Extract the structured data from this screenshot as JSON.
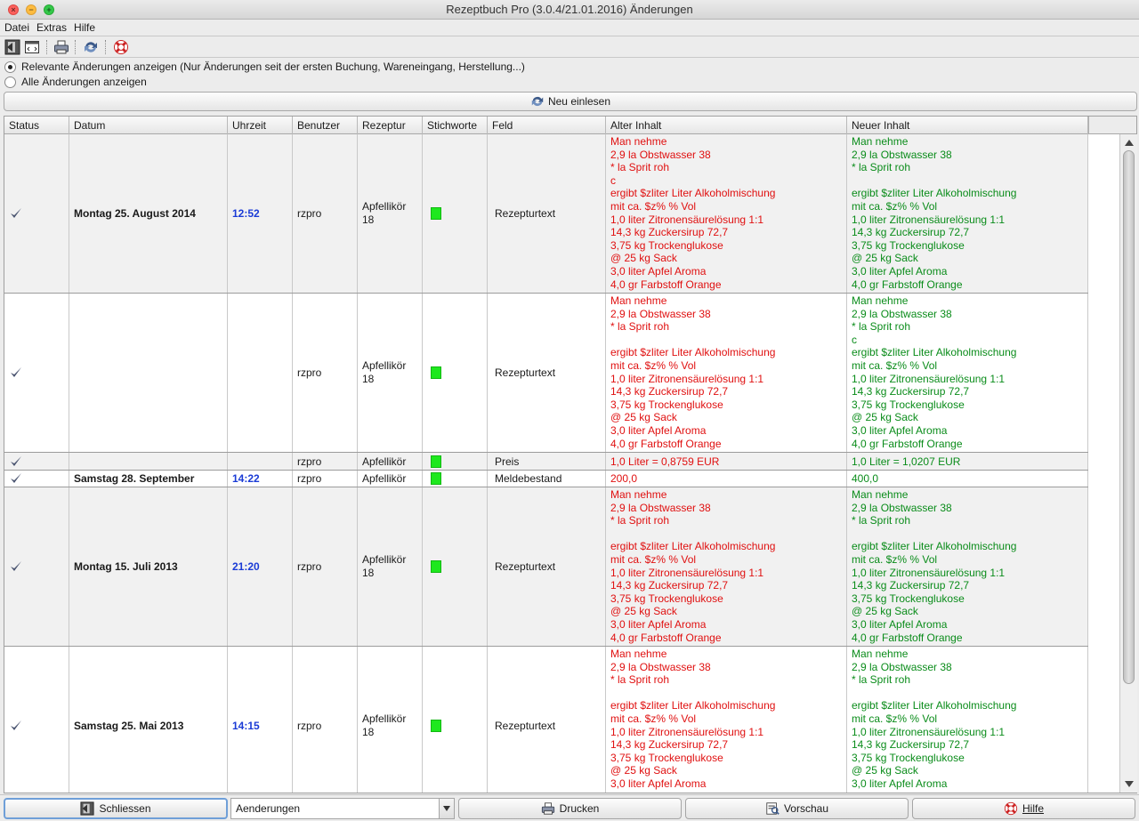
{
  "window": {
    "title": "Rezeptbuch Pro (3.0.4/21.01.2016) Änderungen"
  },
  "menu": [
    "Datei",
    "Extras",
    "Hilfe"
  ],
  "toolbar_icons": [
    "exit-icon",
    "window-icon",
    "print-icon",
    "reload-icon",
    "help-icon"
  ],
  "filter": {
    "relevant_label": "Relevante Änderungen anzeigen (Nur Änderungen seit der ersten Buchung, Wareneingang, Herstellung...)",
    "all_label": "Alle Änderungen anzeigen",
    "selected": "relevant"
  },
  "reload_label": "Neu einlesen",
  "columns": [
    "Status",
    "Datum",
    "Uhrzeit",
    "Benutzer",
    "Rezeptur",
    "Stichworte",
    "Feld",
    "Alter Inhalt",
    "Neuer Inhalt"
  ],
  "rows": [
    {
      "datum": "Montag 25. August 2014",
      "uhrzeit": "12:52",
      "benutzer": "rzpro",
      "rezeptur": "Apfellikör\n18",
      "feld": "Rezepturtext",
      "alt": "Man nehme\n2,9 la Obstwasser 38\n* la Sprit roh\nc\nergibt $zliter Liter Alkoholmischung\nmit ca. $z% % Vol\n1,0 liter Zitronensäurelösung 1:1\n14,3 kg Zuckersirup 72,7\n3,75 kg Trockenglukose\n@ 25 kg Sack\n3,0 liter Apfel Aroma\n4,0 gr Farbstoff Orange",
      "neu": "Man nehme\n2,9 la Obstwasser 38\n* la Sprit roh\n\nergibt $zliter Liter Alkoholmischung\nmit ca. $z% % Vol\n1,0 liter Zitronensäurelösung 1:1\n14,3 kg Zuckersirup 72,7\n3,75 kg Trockenglukose\n@ 25 kg Sack\n3,0 liter Apfel Aroma\n4,0 gr Farbstoff Orange"
    },
    {
      "datum": "",
      "uhrzeit": "",
      "benutzer": "rzpro",
      "rezeptur": "Apfellikör\n18",
      "feld": "Rezepturtext",
      "alt": "Man nehme\n2,9 la Obstwasser 38\n* la Sprit roh\n\nergibt $zliter Liter Alkoholmischung\nmit ca. $z% % Vol\n1,0 liter Zitronensäurelösung 1:1\n14,3 kg Zuckersirup 72,7\n3,75 kg Trockenglukose\n@ 25 kg Sack\n3,0 liter Apfel Aroma\n4,0 gr Farbstoff Orange",
      "neu": "Man nehme\n2,9 la Obstwasser 38\n* la Sprit roh\nc\nergibt $zliter Liter Alkoholmischung\nmit ca. $z% % Vol\n1,0 liter Zitronensäurelösung 1:1\n14,3 kg Zuckersirup 72,7\n3,75 kg Trockenglukose\n@ 25 kg Sack\n3,0 liter Apfel Aroma\n4,0 gr Farbstoff Orange"
    },
    {
      "datum": "",
      "uhrzeit": "",
      "benutzer": "rzpro",
      "rezeptur": "Apfellikör",
      "feld": "Preis",
      "alt": "1,0 Liter = 0,8759 EUR",
      "neu": "1,0 Liter = 1,0207 EUR"
    },
    {
      "datum": "Samstag 28. September",
      "uhrzeit": "14:22",
      "benutzer": "rzpro",
      "rezeptur": "Apfellikör",
      "feld": "Meldebestand",
      "alt": "200,0",
      "neu": "400,0"
    },
    {
      "datum": "Montag 15. Juli 2013",
      "uhrzeit": "21:20",
      "benutzer": "rzpro",
      "rezeptur": "Apfellikör\n18",
      "feld": "Rezepturtext",
      "alt": "Man nehme\n2,9 la Obstwasser 38\n* la Sprit roh\n\nergibt $zliter Liter Alkoholmischung\nmit ca. $z% % Vol\n1,0 liter Zitronensäurelösung 1:1\n14,3 kg Zuckersirup 72,7\n3,75 kg Trockenglukose\n@ 25 kg Sack\n3,0 liter Apfel Aroma\n4,0 gr Farbstoff Orange",
      "neu": "Man nehme\n2,9 la Obstwasser 38\n* la Sprit roh\n\nergibt $zliter Liter Alkoholmischung\nmit ca. $z% % Vol\n1,0 liter Zitronensäurelösung 1:1\n14,3 kg Zuckersirup 72,7\n3,75 kg Trockenglukose\n@ 25 kg Sack\n3,0 liter Apfel Aroma\n4,0 gr Farbstoff Orange"
    },
    {
      "datum": "Samstag 25. Mai 2013",
      "uhrzeit": "14:15",
      "benutzer": "rzpro",
      "rezeptur": "Apfellikör\n18",
      "feld": "Rezepturtext",
      "alt": "Man nehme\n2,9 la Obstwasser 38\n* la Sprit roh\n\nergibt $zliter Liter Alkoholmischung\nmit ca. $z% % Vol\n1,0 liter Zitronensäurelösung 1:1\n14,3 kg Zuckersirup 72,7\n3,75 kg Trockenglukose\n@ 25 kg Sack\n3,0 liter Apfel Aroma",
      "neu": "Man nehme\n2,9 la Obstwasser 38\n* la Sprit roh\n\nergibt $zliter Liter Alkoholmischung\nmit ca. $z% % Vol\n1,0 liter Zitronensäurelösung 1:1\n14,3 kg Zuckersirup 72,7\n3,75 kg Trockenglukose\n@ 25 kg Sack\n3,0 liter Apfel Aroma"
    }
  ],
  "bottom": {
    "close_label": "Schliessen",
    "select_value": "Aenderungen",
    "print_label": "Drucken",
    "preview_label": "Vorschau",
    "help_label": "Hilfe"
  },
  "colors": {
    "old_text": "#e01010",
    "new_text": "#0a8c1a",
    "time_text": "#1a3bd6",
    "keyword_marker": "#1ee81e"
  }
}
